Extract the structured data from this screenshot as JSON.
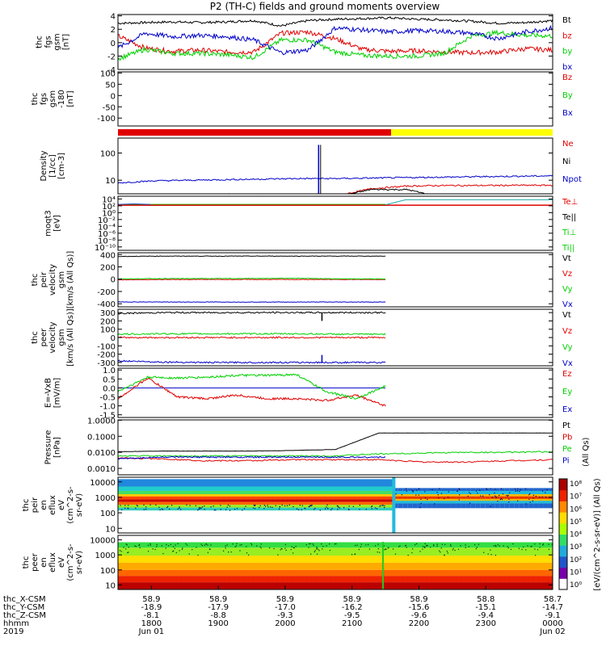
{
  "title": "P2 (TH-C) fields and ground moments overview",
  "colors": {
    "black": "#000000",
    "red": "#e00000",
    "green": "#00d000",
    "blue": "#0000c8",
    "yellow": "#ffff00"
  },
  "chart_data": [
    {
      "id": "fgs",
      "type": "line",
      "ylabel": [
        "thc",
        "fgs",
        "gsm",
        "[nT]"
      ],
      "yticks": [
        "4",
        "2",
        "0",
        "-2",
        "-4"
      ],
      "legend": [
        "Bt",
        "bz",
        "by",
        "bx"
      ],
      "series": [
        {
          "name": "Bt",
          "values": [
            2.9,
            3.0,
            3.1,
            3.0,
            3.1,
            3.3,
            2.5,
            3.3,
            3.5,
            3.6,
            3.7,
            3.5,
            3.4,
            3.2,
            2.9,
            3.0,
            3.3
          ]
        },
        {
          "name": "bz",
          "values": [
            1.0,
            -0.8,
            -1.3,
            -1.1,
            -1.4,
            -1.4,
            1.4,
            1.6,
            0.6,
            -1.0,
            -1.3,
            -1.2,
            -1.4,
            -1.5,
            -1.4,
            -0.9,
            -1.1
          ]
        },
        {
          "name": "by",
          "values": [
            -2.4,
            -1.0,
            -1.6,
            -1.6,
            -1.8,
            -2.2,
            0.4,
            0.4,
            -1.4,
            -1.9,
            -2.0,
            -2.0,
            -1.6,
            1.0,
            1.5,
            1.1,
            1.0
          ]
        },
        {
          "name": "bx",
          "values": [
            -0.8,
            1.4,
            0.9,
            1.1,
            0.9,
            0.4,
            -1.5,
            -1.1,
            2.2,
            1.9,
            1.6,
            1.8,
            1.7,
            1.4,
            0.6,
            1.6,
            2.2
          ]
        }
      ]
    },
    {
      "id": "fgs-dsl",
      "type": "line",
      "ylabel": [
        "thc",
        "fgs",
        "gsm",
        "-180",
        "[nT]"
      ],
      "yticks": [
        "100",
        "50",
        "0",
        "-50",
        "-100"
      ],
      "legend": [
        "Bz",
        "By",
        "Bx"
      ]
    },
    {
      "id": "mode",
      "type": "bar",
      "segments": [
        {
          "from": "1730",
          "to": "2135",
          "color": "red"
        },
        {
          "from": "2135",
          "to": "0000",
          "color": "yellow"
        }
      ]
    },
    {
      "id": "density",
      "type": "line",
      "ylabel": [
        "Density",
        "[1/cc]",
        "[cm-3]"
      ],
      "yticks": [
        "100",
        "10"
      ],
      "legend": [
        "Ne",
        "Ni",
        "Npot"
      ],
      "series": [
        {
          "name": "Ne",
          "values": [
            2.6,
            2.8,
            2.9,
            3.0,
            3.0,
            2.9,
            2.6,
            4.9,
            6.1,
            6.4,
            6.4,
            6.5,
            6.5
          ]
        },
        {
          "name": "Ni",
          "values": [
            2.4,
            2.6,
            2.7,
            2.9,
            3.0,
            2.8,
            2.4,
            4.6,
            4.5,
            2.2,
            2.3,
            2.3,
            2.4
          ]
        },
        {
          "name": "Npot",
          "values": [
            8.0,
            9.5,
            10.0,
            10.5,
            11.0,
            11.5,
            11.5,
            12.0,
            12.5,
            13.0,
            13.5,
            14.0,
            14.5
          ]
        }
      ]
    },
    {
      "id": "moqt3",
      "type": "line",
      "ylabel": [
        "moqt3",
        "[eV]"
      ],
      "yticks": [
        "10⁴",
        "10²",
        "10⁰",
        "10⁻²",
        "10⁻⁴",
        "10⁻⁶",
        "10⁻⁸",
        "10⁻¹⁰"
      ],
      "legend": [
        "Te⊥",
        "Te||",
        "Ti⊥",
        "Ti||"
      ]
    },
    {
      "id": "peir-vel",
      "type": "line",
      "ylabel": [
        "thc",
        "peir",
        "velocity",
        "gsm",
        "[km/s (All Qs)]"
      ],
      "yticks": [
        "400",
        "200",
        "0",
        "-200",
        "-400"
      ],
      "legend": [
        "Vt",
        "Vz",
        "Vy",
        "Vx"
      ],
      "series": [
        {
          "name": "Vt",
          "values": [
            370,
            375,
            375,
            375,
            375,
            375,
            375
          ]
        },
        {
          "name": "Vz",
          "values": [
            -10,
            -5,
            -5,
            -5,
            -5,
            -5,
            -5
          ]
        },
        {
          "name": "Vy",
          "values": [
            5,
            10,
            10,
            12,
            15,
            5,
            5
          ]
        },
        {
          "name": "Vx",
          "values": [
            -370,
            -372,
            -372,
            -372,
            -372,
            -372,
            -372
          ]
        }
      ]
    },
    {
      "id": "peer-vel",
      "type": "line",
      "ylabel": [
        "thc",
        "peer",
        "velocity",
        "gsm",
        "[km/s (All Qs)]"
      ],
      "yticks": [
        "300",
        "200",
        "100",
        "0",
        "-100",
        "-200",
        "-300"
      ],
      "legend": [
        "Vt",
        "Vz",
        "Vy",
        "Vx"
      ],
      "series": [
        {
          "name": "Vt",
          "values": [
            290,
            300,
            300,
            300,
            300,
            300,
            300
          ]
        },
        {
          "name": "Vz",
          "values": [
            0,
            0,
            0,
            0,
            0,
            0,
            0
          ]
        },
        {
          "name": "Vy",
          "values": [
            40,
            45,
            45,
            45,
            45,
            40,
            40
          ]
        },
        {
          "name": "Vx",
          "values": [
            -280,
            -295,
            -300,
            -300,
            -300,
            -300,
            -300
          ]
        }
      ]
    },
    {
      "id": "efield",
      "type": "line",
      "ylabel": [
        "E=-VxB",
        "[mV/m]"
      ],
      "yticks": [
        "1.0",
        "0.5",
        "0.0",
        "-0.5",
        "-1.0",
        "-1.5"
      ],
      "legend": [
        "Ez",
        "Ey",
        "Ex"
      ],
      "series": [
        {
          "name": "Ez",
          "values": [
            -0.6,
            0.55,
            -0.5,
            -0.6,
            -0.4,
            -0.6,
            -0.6,
            -0.7,
            -0.4,
            -1.0
          ]
        },
        {
          "name": "Ey",
          "values": [
            -0.2,
            0.6,
            0.55,
            0.6,
            0.7,
            0.7,
            0.75,
            -0.2,
            -0.6,
            0.1
          ]
        },
        {
          "name": "Ex",
          "values": [
            0.0,
            0.0,
            0.0,
            0.0,
            0.0,
            0.0,
            0.0,
            0.0,
            0.0,
            0.0
          ]
        }
      ]
    },
    {
      "id": "pressure",
      "type": "line",
      "ylabel": [
        "Pressure",
        "[nPa]"
      ],
      "yticks": [
        "1.0000",
        "0.1000",
        "0.0100",
        "0.0010"
      ],
      "legend": [
        "Pt",
        "Pb",
        "Pe",
        "Pi",
        "(All Qs)"
      ],
      "series": [
        {
          "name": "Pt",
          "values": [
            0.011,
            0.012,
            0.012,
            0.012,
            0.013,
            0.015,
            0.16,
            0.16,
            0.16,
            0.16,
            0.16
          ]
        },
        {
          "name": "Pb",
          "values": [
            0.0045,
            0.004,
            0.003,
            0.003,
            0.0035,
            0.0035,
            0.0035,
            0.0025,
            0.0025,
            0.003,
            0.0035
          ]
        },
        {
          "name": "Pe",
          "values": [
            0.006,
            0.006,
            0.006,
            0.006,
            0.006,
            0.006,
            0.008,
            0.009,
            0.01,
            0.01,
            0.011
          ]
        },
        {
          "name": "Pi",
          "values": [
            0.004,
            0.005,
            0.005,
            0.005,
            0.005,
            0.005,
            0.005
          ]
        }
      ]
    },
    {
      "id": "peir-spec",
      "type": "heatmap",
      "ylabel": [
        "thc",
        "peir",
        "en",
        "eflux",
        "eV",
        "(cm^2-s-",
        "sr-eV)"
      ],
      "yticks": [
        "10000",
        "1000",
        "100",
        "10"
      ]
    },
    {
      "id": "peer-spec",
      "type": "heatmap",
      "ylabel": [
        "thc",
        "peer",
        "en",
        "eflux",
        "eV",
        "(cm^2-s-",
        "sr-eV)"
      ],
      "yticks": [
        "10000",
        "1000",
        "100",
        "10"
      ]
    }
  ],
  "colorbar": {
    "ticks": [
      "10⁸",
      "10⁷",
      "10⁶",
      "10⁵",
      "10⁴",
      "10³",
      "10²",
      "10¹",
      "10⁰"
    ],
    "label": "[eV/(cm^2-s-sr-eV)] (All Qs)"
  },
  "xaxis": {
    "rows": [
      {
        "label": "thc_X-CSM",
        "values": [
          "58.9",
          "58.9",
          "58.9",
          "58.9",
          "58.9",
          "58.8",
          "58.7"
        ]
      },
      {
        "label": "thc_Y-CSM",
        "values": [
          "-18.9",
          "-17.9",
          "-17.0",
          "-16.2",
          "-15.6",
          "-15.1",
          "-14.7"
        ]
      },
      {
        "label": "thc_Z-CSM",
        "values": [
          "-8.1",
          "-8.8",
          "-9.3",
          "-9.5",
          "-9.6",
          "-9.4",
          "-9.1"
        ]
      },
      {
        "label": "hhmm",
        "values": [
          "1800",
          "1900",
          "2000",
          "2100",
          "2200",
          "2300",
          "0000"
        ]
      },
      {
        "label": "2019",
        "values": [
          "Jun 01",
          "",
          "",
          "",
          "",
          "",
          "Jun 02"
        ]
      }
    ]
  }
}
